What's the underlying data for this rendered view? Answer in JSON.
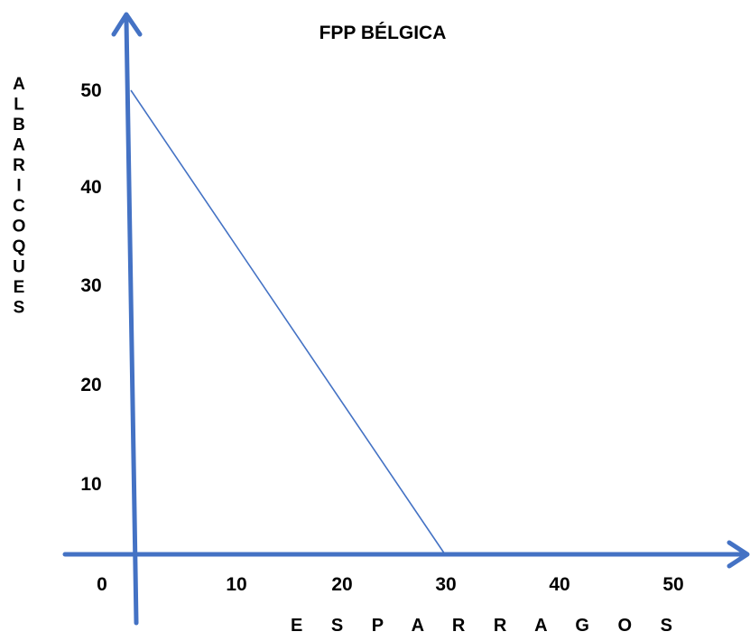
{
  "chart_data": {
    "type": "line",
    "title": "FPP BÉLGICA",
    "xlabel": "E S P A R R A G O S",
    "ylabel": "ALBARICOQUES",
    "ylabel_letters": [
      "A",
      "L",
      "B",
      "A",
      "R",
      "I",
      "C",
      "O",
      "Q",
      "U",
      "E",
      "S"
    ],
    "x_ticks": [
      "0",
      "10",
      "20",
      "30",
      "40",
      "50"
    ],
    "y_ticks": [
      "10",
      "20",
      "30",
      "40",
      "50"
    ],
    "xlim": [
      0,
      50
    ],
    "ylim": [
      0,
      50
    ],
    "series": [
      {
        "points": [
          {
            "x": 0,
            "y": 50
          },
          {
            "x": 30,
            "y": 0
          }
        ]
      }
    ],
    "grid": false,
    "axis_color": "#4472C4",
    "line_color": "#4472C4"
  }
}
